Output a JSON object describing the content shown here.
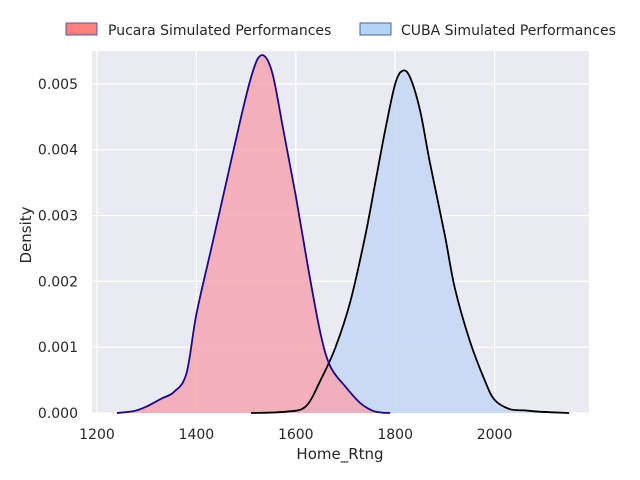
{
  "chart_data": {
    "type": "area",
    "title": "",
    "xlabel": "Home_Rtng",
    "ylabel": "Density",
    "xlim": [
      1190,
      2190
    ],
    "ylim": [
      0,
      0.0055
    ],
    "x_ticks": [
      1200,
      1400,
      1600,
      1800,
      2000
    ],
    "y_ticks": [
      0.0,
      0.001,
      0.002,
      0.003,
      0.004,
      0.005
    ],
    "x_tick_labels": [
      "1200",
      "1400",
      "1600",
      "1800",
      "2000"
    ],
    "y_tick_labels": [
      "0.000",
      "0.001",
      "0.002",
      "0.003",
      "0.004",
      "0.005"
    ],
    "grid": true,
    "legend_position": "top",
    "series": [
      {
        "name": "Pucara Simulated Performances",
        "fill_color": "#f4a6b0",
        "line_color": "#1a0a8a",
        "legend_color": "#ff7f7f",
        "x": [
          1240,
          1275,
          1300,
          1330,
          1355,
          1380,
          1400,
          1430,
          1460,
          1490,
          1510,
          1525,
          1540,
          1555,
          1575,
          1600,
          1625,
          1650,
          1670,
          1700,
          1730,
          1760,
          1790
        ],
        "y": [
          0.0,
          3e-05,
          0.0001,
          0.00022,
          0.00032,
          0.0006,
          0.0015,
          0.0025,
          0.0035,
          0.0045,
          0.0051,
          0.0054,
          0.0054,
          0.0051,
          0.0043,
          0.0033,
          0.0022,
          0.0012,
          0.0007,
          0.0004,
          0.00015,
          2e-05,
          0.0
        ]
      },
      {
        "name": "CUBA Simulated Performances",
        "fill_color": "#c6d8f4",
        "line_color": "#000000",
        "legend_color": "#b3d4f7",
        "x": [
          1510,
          1580,
          1620,
          1650,
          1680,
          1710,
          1740,
          1760,
          1780,
          1800,
          1815,
          1830,
          1850,
          1870,
          1900,
          1920,
          1950,
          1980,
          2000,
          2030,
          2060,
          2090,
          2150
        ],
        "y": [
          0.0,
          2e-05,
          0.0001,
          0.0005,
          0.001,
          0.0017,
          0.0027,
          0.0035,
          0.0043,
          0.005,
          0.0052,
          0.0051,
          0.0046,
          0.0038,
          0.0027,
          0.0019,
          0.0011,
          0.0005,
          0.0002,
          6e-05,
          4e-05,
          2e-05,
          0.0
        ]
      }
    ]
  }
}
